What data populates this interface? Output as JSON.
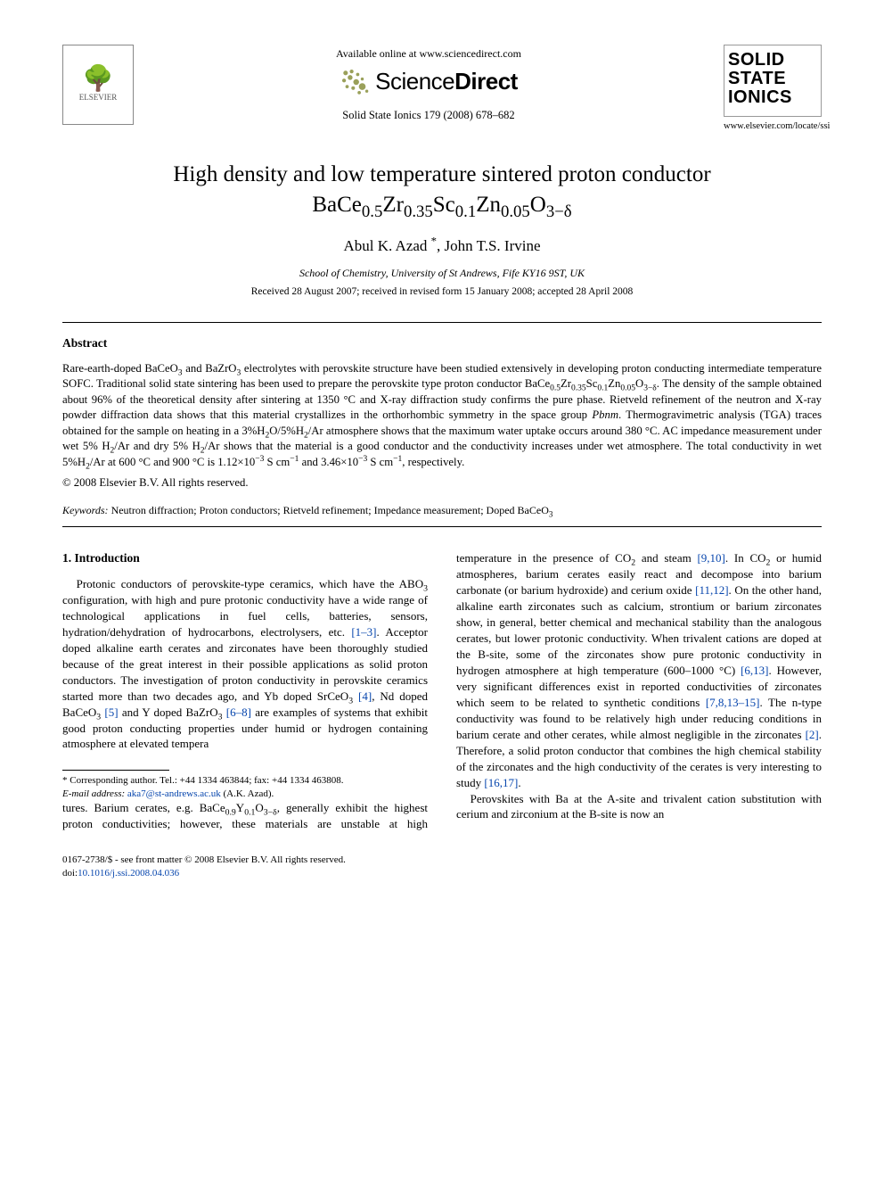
{
  "header": {
    "elsevier_label": "ELSEVIER",
    "available_online": "Available online at www.sciencedirect.com",
    "sciencedirect_light": "Science",
    "sciencedirect_bold": "Direct",
    "journal_ref": "Solid State Ionics 179 (2008) 678–682",
    "journal_box_line1": "SOLID",
    "journal_box_line2": "STATE",
    "journal_box_line3": "IONICS",
    "journal_url": "www.elsevier.com/locate/ssi"
  },
  "article": {
    "title_html": "High density and low temperature sintered proton conductor BaCe<sub>0.5</sub>Zr<sub>0.35</sub>Sc<sub>0.1</sub>Zn<sub>0.05</sub>O<sub>3−δ</sub>",
    "authors_html": "Abul K. Azad&nbsp;<sup>*</sup>, John T.S. Irvine",
    "affiliation": "School of Chemistry, University of St Andrews, Fife KY16 9ST, UK",
    "dates": "Received 28 August 2007; received in revised form 15 January 2008; accepted 28 April 2008"
  },
  "abstract": {
    "heading": "Abstract",
    "body_html": "Rare-earth-doped BaCeO<sub>3</sub> and BaZrO<sub>3</sub> electrolytes with perovskite structure have been studied extensively in developing proton conducting intermediate temperature SOFC. Traditional solid state sintering has been used to prepare the perovskite type proton conductor BaCe<sub>0.5</sub>Zr<sub>0.35</sub>Sc<sub>0.1</sub>Zn<sub>0.05</sub>O<sub>3−δ</sub>. The density of the sample obtained about 96% of the theoretical density after sintering at 1350 °C and X-ray diffraction study confirms the pure phase. Rietveld refinement of the neutron and X-ray powder diffraction data shows that this material crystallizes in the orthorhombic symmetry in the space group <i>Pbnm</i>. Thermogravimetric analysis (TGA) traces obtained for the sample on heating in a 3%H<sub>2</sub>O/5%H<sub>2</sub>/Ar atmosphere shows that the maximum water uptake occurs around 380 °C. AC impedance measurement under wet 5% H<sub>2</sub>/Ar and dry 5% H<sub>2</sub>/Ar shows that the material is a good conductor and the conductivity increases under wet atmosphere. The total conductivity in wet 5%H<sub>2</sub>/Ar at 600 °C and 900 °C is 1.12×10<sup>−3</sup> S cm<sup>−1</sup> and 3.46×10<sup>−3</sup> S cm<sup>−1</sup>, respectively.",
    "copyright": "© 2008 Elsevier B.V. All rights reserved."
  },
  "keywords": {
    "label": "Keywords:",
    "text_html": "Neutron diffraction; Proton conductors; Rietveld refinement; Impedance measurement; Doped BaCeO<sub>3</sub>"
  },
  "section1": {
    "heading": "1. Introduction",
    "para1_html": "Protonic conductors of perovskite-type ceramics, which have the ABO<sub>3</sub> configuration, with high and pure protonic conductivity have a wide range of technological applications in fuel cells, batteries, sensors, hydration/dehydration of hydrocarbons, electrolysers, etc. <a class=\"ref\" href=\"#\">[1–3]</a>. Acceptor doped alkaline earth cerates and zirconates have been thoroughly studied because of the great interest in their possible applications as solid proton conductors. The investigation of proton conductivity in perovskite ceramics started more than two decades ago, and Yb doped SrCeO<sub>3</sub> <a class=\"ref\" href=\"#\">[4]</a>, Nd doped BaCeO<sub>3</sub> <a class=\"ref\" href=\"#\">[5]</a> and Y doped BaZrO<sub>3</sub> <a class=\"ref\" href=\"#\">[6–8]</a> are examples of systems that exhibit good proton conducting properties under humid or hydrogen containing atmosphere at elevated tempera",
    "para1b_html": "tures. Barium cerates, e.g. BaCe<sub>0.9</sub>Y<sub>0.1</sub>O<sub>3−δ</sub>, generally exhibit the highest proton conductivities; however, these materials are unstable at high temperature in the presence of CO<sub>2</sub> and steam <a class=\"ref\" href=\"#\">[9,10]</a>. In CO<sub>2</sub> or humid atmospheres, barium cerates easily react and decompose into barium carbonate (or barium hydroxide) and cerium oxide <a class=\"ref\" href=\"#\">[11,12]</a>. On the other hand, alkaline earth zirconates such as calcium, strontium or barium zirconates show, in general, better chemical and mechanical stability than the analogous cerates, but lower protonic conductivity. When trivalent cations are doped at the B-site, some of the zirconates show pure protonic conductivity in hydrogen atmosphere at high temperature (600–1000 °C) <a class=\"ref\" href=\"#\">[6,13]</a>. However, very significant differences exist in reported conductivities of zirconates which seem to be related to synthetic conditions <a class=\"ref\" href=\"#\">[7,8,13–15]</a>. The n-type conductivity was found to be relatively high under reducing conditions in barium cerate and other cerates, while almost negligible in the zirconates <a class=\"ref\" href=\"#\">[2]</a>. Therefore, a solid proton conductor that combines the high chemical stability of the zirconates and the high conductivity of the cerates is very interesting to study <a class=\"ref\" href=\"#\">[16,17]</a>.",
    "para2_html": "Perovskites with Ba at the A-site and trivalent cation substitution with cerium and zirconium at the B-site is now an"
  },
  "footnote": {
    "corr_html": "* Corresponding author. Tel.: +44 1334 463844; fax: +44 1334 463808.",
    "email_label": "E-mail address:",
    "email_link": "aka7@st-andrews.ac.uk",
    "email_suffix": "(A.K. Azad)."
  },
  "footer": {
    "line1": "0167-2738/$ - see front matter © 2008 Elsevier B.V. All rights reserved.",
    "doi_prefix": "doi:",
    "doi": "10.1016/j.ssi.2008.04.036"
  },
  "colors": {
    "link": "#0645ad",
    "text": "#000000",
    "bg": "#ffffff"
  }
}
